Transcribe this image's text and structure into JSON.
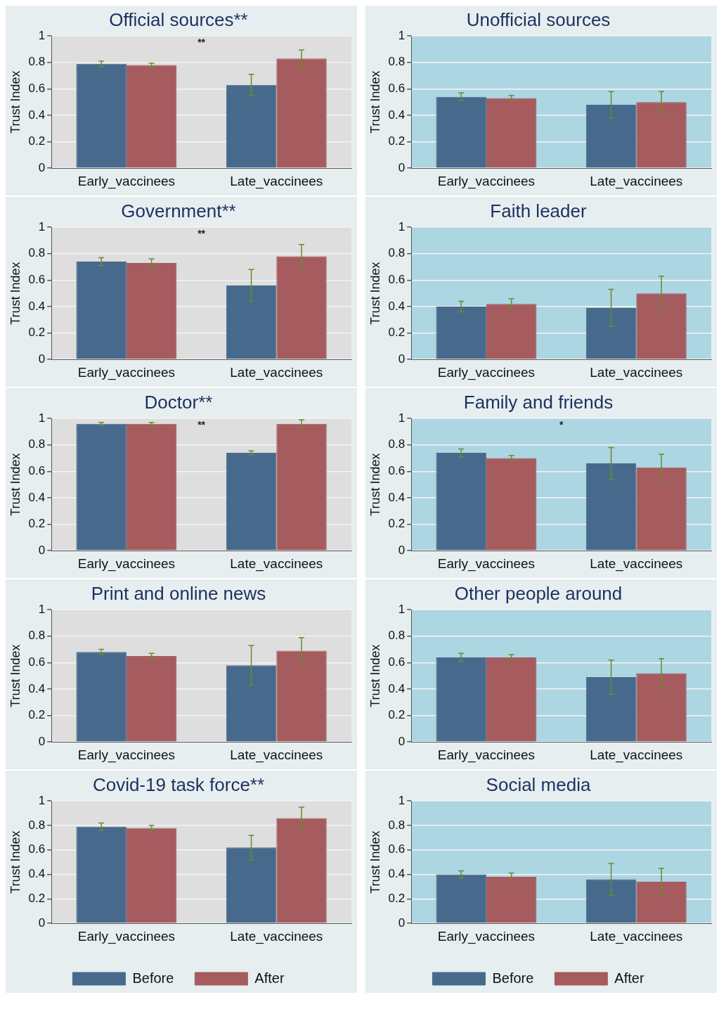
{
  "chart_data": [
    {
      "type": "bar",
      "title": "Official sources**",
      "ylabel": "Trust Index",
      "categories": [
        "Early_vaccinees",
        "Late_vaccinees"
      ],
      "series": [
        {
          "color": "#476a8c",
          "values": [
            0.79,
            0.63
          ],
          "errors": [
            0.02,
            0.08
          ]
        },
        {
          "color": "#a65b5f",
          "values": [
            0.78,
            0.83
          ],
          "errors": [
            0.015,
            0.065
          ]
        }
      ],
      "ylim": [
        0,
        1
      ],
      "yticks": [
        0,
        0.2,
        0.4,
        0.6,
        0.8,
        1
      ],
      "grid": "y",
      "legend": false,
      "annotations": [
        "**"
      ]
    },
    {
      "type": "bar",
      "title": "Unofficial sources",
      "ylabel": "Trust Index",
      "categories": [
        "Early_vaccinees",
        "Late_vaccinees"
      ],
      "series": [
        {
          "color": "#476a8c",
          "values": [
            0.54,
            0.48
          ],
          "errors": [
            0.03,
            0.1
          ]
        },
        {
          "color": "#a65b5f",
          "values": [
            0.53,
            0.5
          ],
          "errors": [
            0.02,
            0.08
          ]
        }
      ],
      "ylim": [
        0,
        1
      ],
      "yticks": [
        0,
        0.2,
        0.4,
        0.6,
        0.8,
        1
      ],
      "grid": "y",
      "legend": false
    },
    {
      "type": "bar",
      "title": "Government**",
      "ylabel": "Trust Index",
      "categories": [
        "Early_vaccinees",
        "Late_vaccinees"
      ],
      "series": [
        {
          "color": "#476a8c",
          "values": [
            0.74,
            0.56
          ],
          "errors": [
            0.03,
            0.12
          ]
        },
        {
          "color": "#a65b5f",
          "values": [
            0.73,
            0.78
          ],
          "errors": [
            0.03,
            0.09
          ]
        }
      ],
      "ylim": [
        0,
        1
      ],
      "yticks": [
        0,
        0.2,
        0.4,
        0.6,
        0.8,
        1
      ],
      "grid": "y",
      "legend": false,
      "annotations": [
        "**"
      ]
    },
    {
      "type": "bar",
      "title": "Faith leader",
      "ylabel": "Trust Index",
      "categories": [
        "Early_vaccinees",
        "Late_vaccinees"
      ],
      "series": [
        {
          "color": "#476a8c",
          "values": [
            0.4,
            0.39
          ],
          "errors": [
            0.04,
            0.14
          ]
        },
        {
          "color": "#a65b5f",
          "values": [
            0.42,
            0.5
          ],
          "errors": [
            0.04,
            0.13
          ]
        }
      ],
      "ylim": [
        0,
        1
      ],
      "yticks": [
        0,
        0.2,
        0.4,
        0.6,
        0.8,
        1
      ],
      "grid": "y",
      "legend": false
    },
    {
      "type": "bar",
      "title": "Doctor**",
      "ylabel": "Trust Index",
      "categories": [
        "Early_vaccinees",
        "Late_vaccinees"
      ],
      "series": [
        {
          "color": "#476a8c",
          "values": [
            0.96,
            0.74
          ],
          "errors": [
            0.01,
            0.015
          ]
        },
        {
          "color": "#a65b5f",
          "values": [
            0.96,
            0.96
          ],
          "errors": [
            0.01,
            0.03
          ]
        }
      ],
      "ylim": [
        0,
        1
      ],
      "yticks": [
        0,
        0.2,
        0.4,
        0.6,
        0.8,
        1
      ],
      "grid": "y",
      "legend": false,
      "annotations": [
        "**"
      ]
    },
    {
      "type": "bar",
      "title": "Family and friends",
      "ylabel": "Trust Index",
      "categories": [
        "Early_vaccinees",
        "Late_vaccinees"
      ],
      "series": [
        {
          "color": "#476a8c",
          "values": [
            0.74,
            0.66
          ],
          "errors": [
            0.03,
            0.12
          ]
        },
        {
          "color": "#a65b5f",
          "values": [
            0.7,
            0.63
          ],
          "errors": [
            0.02,
            0.1
          ]
        }
      ],
      "ylim": [
        0,
        1
      ],
      "yticks": [
        0,
        0.2,
        0.4,
        0.6,
        0.8,
        1
      ],
      "grid": "y",
      "legend": false,
      "annotations": [
        "*"
      ]
    },
    {
      "type": "bar",
      "title": "Print and online news",
      "ylabel": "Trust Index",
      "categories": [
        "Early_vaccinees",
        "Late_vaccinees"
      ],
      "series": [
        {
          "color": "#476a8c",
          "values": [
            0.68,
            0.58
          ],
          "errors": [
            0.02,
            0.15
          ]
        },
        {
          "color": "#a65b5f",
          "values": [
            0.65,
            0.69
          ],
          "errors": [
            0.02,
            0.1
          ]
        }
      ],
      "ylim": [
        0,
        1
      ],
      "yticks": [
        0,
        0.2,
        0.4,
        0.6,
        0.8,
        1
      ],
      "grid": "y",
      "legend": false
    },
    {
      "type": "bar",
      "title": "Other people around",
      "ylabel": "Trust Index",
      "categories": [
        "Early_vaccinees",
        "Late_vaccinees"
      ],
      "series": [
        {
          "color": "#476a8c",
          "values": [
            0.64,
            0.49
          ],
          "errors": [
            0.03,
            0.13
          ]
        },
        {
          "color": "#a65b5f",
          "values": [
            0.64,
            0.52
          ],
          "errors": [
            0.02,
            0.11
          ]
        }
      ],
      "ylim": [
        0,
        1
      ],
      "yticks": [
        0,
        0.2,
        0.4,
        0.6,
        0.8,
        1
      ],
      "grid": "y",
      "legend": false
    },
    {
      "type": "bar",
      "title": "Covid-19 task force**",
      "ylabel": "Trust Index",
      "categories": [
        "Early_vaccinees",
        "Late_vaccinees"
      ],
      "series": [
        {
          "name": "Before",
          "color": "#476a8c",
          "values": [
            0.79,
            0.62
          ],
          "errors": [
            0.03,
            0.1
          ]
        },
        {
          "name": "After",
          "color": "#a65b5f",
          "values": [
            0.78,
            0.86
          ],
          "errors": [
            0.02,
            0.09
          ]
        }
      ],
      "ylim": [
        0,
        1
      ],
      "yticks": [
        0,
        0.2,
        0.4,
        0.6,
        0.8,
        1
      ],
      "grid": "y",
      "legend": "bottom"
    },
    {
      "type": "bar",
      "title": "Social media",
      "ylabel": "Trust Index",
      "categories": [
        "Early_vaccinees",
        "Late_vaccinees"
      ],
      "series": [
        {
          "name": "Before",
          "color": "#476a8c",
          "values": [
            0.4,
            0.36
          ],
          "errors": [
            0.03,
            0.13
          ]
        },
        {
          "name": "After",
          "color": "#a65b5f",
          "values": [
            0.38,
            0.34
          ],
          "errors": [
            0.03,
            0.11
          ]
        }
      ],
      "ylim": [
        0,
        1
      ],
      "yticks": [
        0,
        0.2,
        0.4,
        0.6,
        0.8,
        1
      ],
      "grid": "y",
      "legend": "bottom"
    }
  ]
}
